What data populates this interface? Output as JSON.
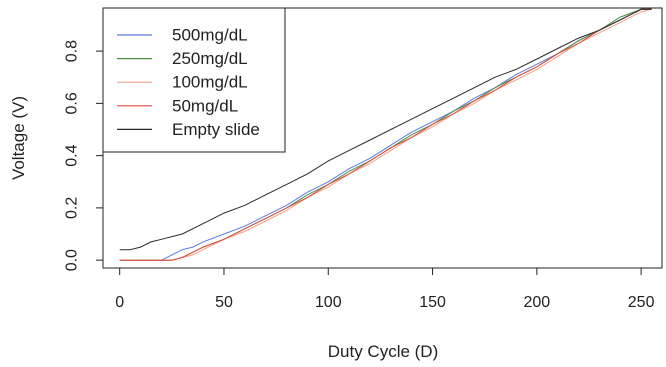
{
  "chart_data": {
    "type": "line",
    "xlabel": "Duty Cycle (D)",
    "ylabel": "Voltage (V)",
    "xlim": [
      -8,
      260
    ],
    "ylim": [
      -0.03,
      0.965
    ],
    "xticks": [
      0,
      50,
      100,
      150,
      200,
      250
    ],
    "yticks": [
      0.0,
      0.2,
      0.4,
      0.6,
      0.8
    ],
    "xtick_labels": [
      "0",
      "50",
      "100",
      "150",
      "200",
      "250"
    ],
    "ytick_labels": [
      "0.0",
      "0.2",
      "0.4",
      "0.6",
      "0.8"
    ],
    "legend_position": "top-left",
    "grid": false,
    "series": [
      {
        "name": "500mg/dL",
        "color": "#5b7be0",
        "x": [
          0,
          15,
          20,
          25,
          30,
          35,
          40,
          50,
          60,
          70,
          80,
          90,
          100,
          110,
          120,
          130,
          140,
          150,
          160,
          170,
          180,
          190,
          200,
          210,
          220,
          230,
          240,
          250,
          255
        ],
        "y": [
          0.0,
          0.0,
          0.0,
          0.02,
          0.04,
          0.05,
          0.07,
          0.1,
          0.13,
          0.17,
          0.21,
          0.26,
          0.3,
          0.35,
          0.39,
          0.44,
          0.49,
          0.53,
          0.57,
          0.62,
          0.66,
          0.71,
          0.75,
          0.79,
          0.84,
          0.88,
          0.92,
          0.96,
          0.96
        ]
      },
      {
        "name": "250mg/dL",
        "color": "#4f8f3f",
        "x": [
          0,
          20,
          25,
          30,
          35,
          40,
          50,
          60,
          70,
          80,
          90,
          100,
          110,
          120,
          130,
          140,
          150,
          160,
          170,
          180,
          190,
          200,
          210,
          220,
          230,
          240,
          250,
          255
        ],
        "y": [
          0.0,
          0.0,
          0.0,
          0.01,
          0.03,
          0.05,
          0.08,
          0.12,
          0.16,
          0.2,
          0.25,
          0.29,
          0.34,
          0.38,
          0.43,
          0.48,
          0.52,
          0.57,
          0.61,
          0.66,
          0.7,
          0.74,
          0.79,
          0.84,
          0.88,
          0.93,
          0.96,
          0.96
        ]
      },
      {
        "name": "100mg/dL",
        "color": "#f0a08a",
        "x": [
          0,
          20,
          25,
          30,
          35,
          40,
          50,
          60,
          70,
          80,
          90,
          100,
          110,
          120,
          130,
          140,
          150,
          160,
          170,
          180,
          190,
          200,
          210,
          220,
          230,
          240,
          250,
          255
        ],
        "y": [
          0.0,
          0.0,
          0.0,
          0.01,
          0.02,
          0.04,
          0.08,
          0.11,
          0.15,
          0.19,
          0.24,
          0.28,
          0.33,
          0.37,
          0.42,
          0.47,
          0.51,
          0.56,
          0.6,
          0.65,
          0.69,
          0.73,
          0.78,
          0.83,
          0.87,
          0.91,
          0.95,
          0.96
        ]
      },
      {
        "name": "50mg/dL",
        "color": "#e04a3a",
        "x": [
          0,
          20,
          25,
          30,
          35,
          40,
          50,
          60,
          70,
          80,
          90,
          100,
          110,
          120,
          130,
          140,
          150,
          160,
          170,
          180,
          190,
          200,
          210,
          220,
          230,
          240,
          250,
          255
        ],
        "y": [
          0.0,
          0.0,
          0.0,
          0.01,
          0.03,
          0.05,
          0.08,
          0.12,
          0.16,
          0.2,
          0.24,
          0.29,
          0.33,
          0.38,
          0.43,
          0.47,
          0.52,
          0.56,
          0.61,
          0.65,
          0.7,
          0.74,
          0.79,
          0.83,
          0.88,
          0.92,
          0.96,
          0.96
        ]
      },
      {
        "name": "Empty slide",
        "color": "#2b2b2b",
        "x": [
          0,
          5,
          10,
          15,
          20,
          30,
          40,
          50,
          60,
          70,
          80,
          90,
          100,
          110,
          120,
          130,
          140,
          150,
          160,
          170,
          180,
          190,
          200,
          210,
          220,
          230,
          240,
          250,
          255
        ],
        "y": [
          0.04,
          0.04,
          0.05,
          0.07,
          0.08,
          0.1,
          0.14,
          0.18,
          0.21,
          0.25,
          0.29,
          0.33,
          0.38,
          0.42,
          0.46,
          0.5,
          0.54,
          0.58,
          0.62,
          0.66,
          0.7,
          0.73,
          0.77,
          0.81,
          0.85,
          0.88,
          0.92,
          0.96,
          0.96
        ]
      }
    ]
  }
}
